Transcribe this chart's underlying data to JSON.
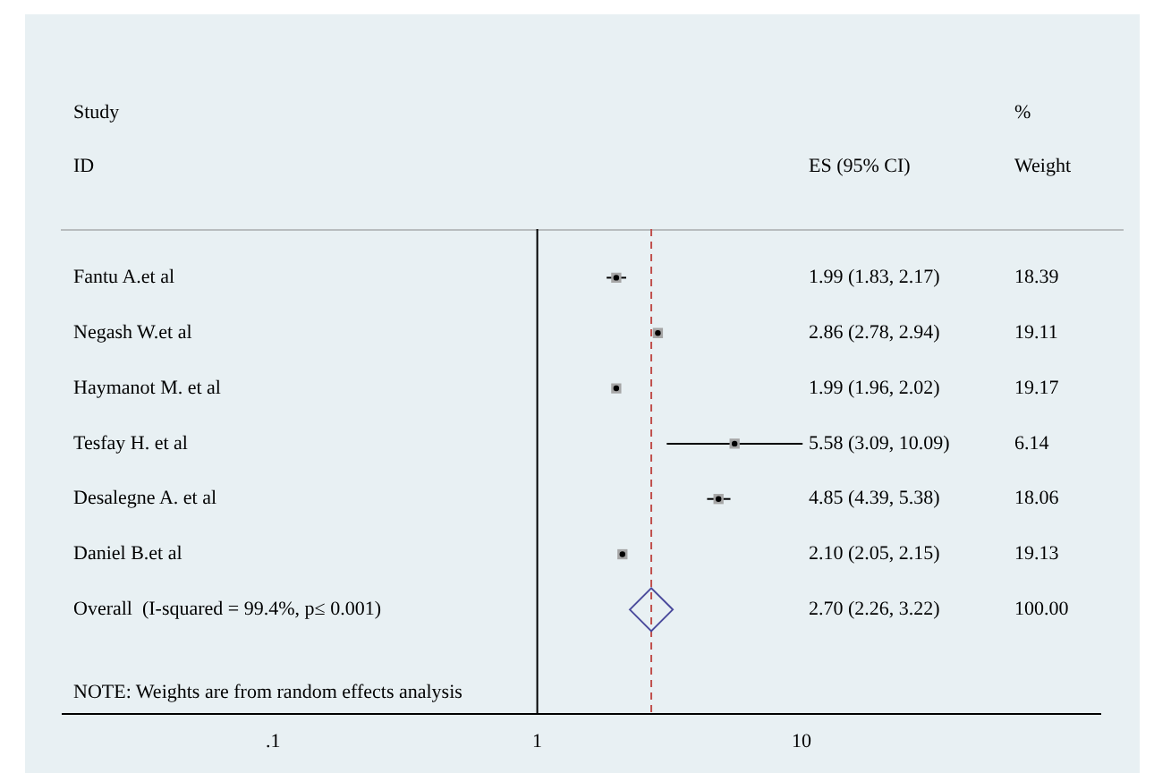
{
  "chart_data": {
    "type": "scatter",
    "orientation": "horizontal",
    "log": "x",
    "grid": false,
    "legend": false,
    "categories": [
      "Fantu A.et al",
      "Negash W.et al",
      "Haymanot M. et al",
      "Tesfay H. et al",
      "Desalegne A. et al",
      "Daniel B.et al",
      "Overall  (I-squared = 99.4%, p≤ 0.001)"
    ],
    "xlim": [
      0.016,
      135
    ],
    "xticks": [
      {
        "value": 0.1,
        "label": ".1"
      },
      1,
      10
    ],
    "series": [
      {
        "color": "#a6a6a6",
        "marker": "square",
        "values": [
          1.99,
          2.86,
          1.99,
          5.58,
          4.85,
          2.1,
          null
        ],
        "errors": [
          [
            1.83,
            2.17
          ],
          [
            2.78,
            2.94
          ],
          [
            1.96,
            2.02
          ],
          [
            3.09,
            10.09
          ],
          [
            4.39,
            5.38
          ],
          [
            2.05,
            2.15
          ],
          null
        ]
      },
      {
        "color": "#4a4a9c",
        "marker": "diamond",
        "values": [
          null,
          null,
          null,
          null,
          null,
          null,
          2.7
        ]
      }
    ],
    "ref_lines": [
      {
        "axis": "x",
        "value": 1,
        "color": "#000000",
        "line_style": "solid"
      },
      {
        "axis": "x",
        "value": 2.7,
        "color": "#c0504d",
        "line_style": "dashed"
      }
    ],
    "annotations": [
      "Study",
      "ID",
      "ES (95% CI)",
      "%",
      "Weight",
      "NOTE: Weights are from random effects analysis",
      "1.99 (1.83, 2.17)",
      "2.86 (2.78, 2.94)",
      "1.99 (1.96, 2.02)",
      "5.58 (3.09, 10.09)",
      "4.85 (4.39, 5.38)",
      "2.10 (2.05, 2.15)",
      "2.70 (2.26, 3.22)",
      "18.39",
      "19.11",
      "19.17",
      "6.14",
      "18.06",
      "19.13",
      "100.00"
    ]
  }
}
